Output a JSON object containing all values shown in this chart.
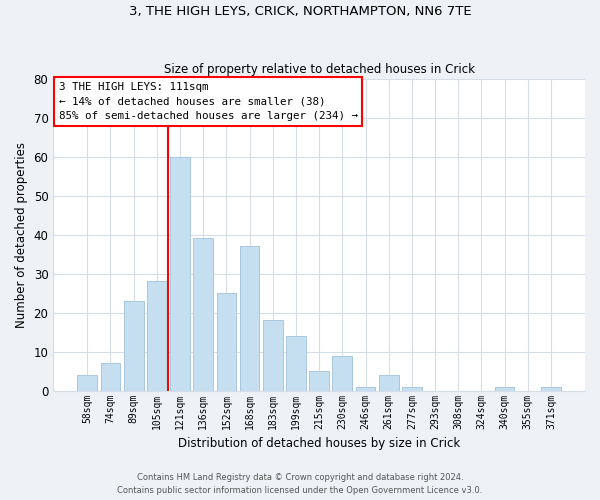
{
  "title1": "3, THE HIGH LEYS, CRICK, NORTHAMPTON, NN6 7TE",
  "title2": "Size of property relative to detached houses in Crick",
  "xlabel": "Distribution of detached houses by size in Crick",
  "ylabel": "Number of detached properties",
  "categories": [
    "58sqm",
    "74sqm",
    "89sqm",
    "105sqm",
    "121sqm",
    "136sqm",
    "152sqm",
    "168sqm",
    "183sqm",
    "199sqm",
    "215sqm",
    "230sqm",
    "246sqm",
    "261sqm",
    "277sqm",
    "293sqm",
    "308sqm",
    "324sqm",
    "340sqm",
    "355sqm",
    "371sqm"
  ],
  "values": [
    4,
    7,
    23,
    28,
    60,
    39,
    25,
    37,
    18,
    14,
    5,
    9,
    1,
    4,
    1,
    0,
    0,
    0,
    1,
    0,
    1
  ],
  "bar_color": "#c6dff0",
  "bar_edge_color": "#a8c8e0",
  "vline_color": "red",
  "vline_index": 4,
  "annotation_text": "3 THE HIGH LEYS: 111sqm\n← 14% of detached houses are smaller (38)\n85% of semi-detached houses are larger (234) →",
  "ylim": [
    0,
    80
  ],
  "yticks": [
    0,
    10,
    20,
    30,
    40,
    50,
    60,
    70,
    80
  ],
  "footer1": "Contains HM Land Registry data © Crown copyright and database right 2024.",
  "footer2": "Contains public sector information licensed under the Open Government Licence v3.0.",
  "bg_color": "#eef2f7",
  "plot_bg_color": "#ffffff",
  "grid_color": "#d5dde8"
}
